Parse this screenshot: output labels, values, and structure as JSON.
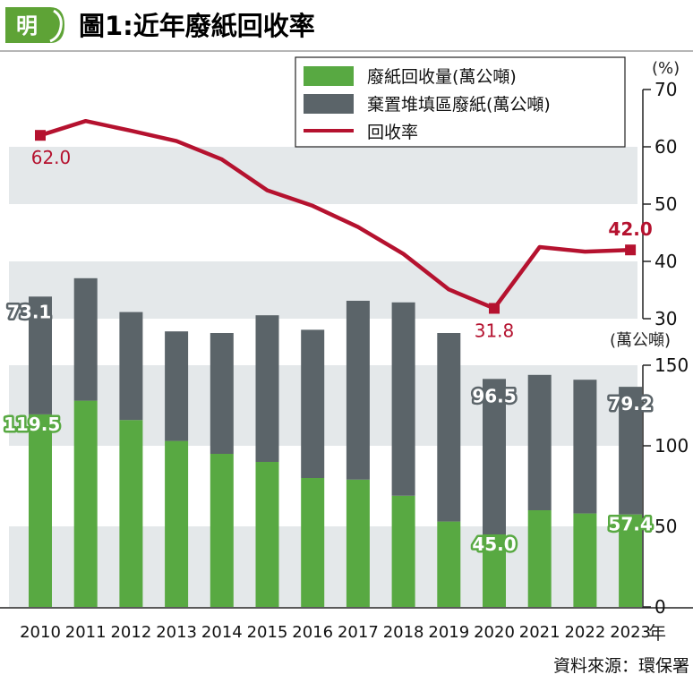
{
  "header": {
    "logo_text": "明",
    "title": "圖1:近年廢紙回收率"
  },
  "source": "資料來源：環保署",
  "colors": {
    "recovered": "#58a942",
    "landfill": "#5b6469",
    "rate_line": "#b5122f",
    "band": "#e4e8ea",
    "logo_green": "#5ea336"
  },
  "chart_data": {
    "type": "bar",
    "stacked": true,
    "categories": [
      "2010",
      "2011",
      "2012",
      "2013",
      "2014",
      "2015",
      "2016",
      "2017",
      "2018",
      "2019",
      "2020",
      "2021",
      "2022",
      "2023"
    ],
    "x_unit_label": "年",
    "series": [
      {
        "name": "廢紙回收量(萬公噸)",
        "axis": "right-lower",
        "values": [
          119.5,
          128,
          116,
          103,
          95,
          90,
          80,
          79,
          69,
          53,
          45,
          60,
          58,
          57.4
        ]
      },
      {
        "name": "棄置堆填區廢紙(萬公噸)",
        "axis": "right-lower",
        "values": [
          73.1,
          76,
          67,
          68,
          75,
          91,
          92,
          111,
          120,
          117,
          96.5,
          84,
          83,
          79.2
        ]
      },
      {
        "name": "回收率",
        "type": "line",
        "axis": "right-upper",
        "values": [
          62.0,
          64.5,
          62.8,
          61.0,
          57.8,
          52.4,
          49.7,
          46.0,
          41.3,
          35.1,
          31.8,
          42.5,
          41.7,
          42.0
        ]
      }
    ],
    "axes": {
      "upper": {
        "label": "(%)",
        "range": [
          30,
          70
        ],
        "ticks": [
          "30",
          "40",
          "50",
          "60",
          "70"
        ]
      },
      "lower": {
        "label": "(萬公噸)",
        "range": [
          0,
          150
        ],
        "ticks": [
          "0",
          "50",
          "100",
          "150"
        ]
      }
    },
    "annotations": {
      "bars": [
        {
          "category": "2010",
          "series": 0,
          "text": "119.5"
        },
        {
          "category": "2010",
          "series": 1,
          "text": "73.1"
        },
        {
          "category": "2020",
          "series": 0,
          "text": "45.0"
        },
        {
          "category": "2020",
          "series": 1,
          "text": "96.5"
        },
        {
          "category": "2023",
          "series": 0,
          "text": "57.4"
        },
        {
          "category": "2023",
          "series": 1,
          "text": "79.2"
        }
      ],
      "line": [
        {
          "category": "2010",
          "text": "62.0",
          "position": "below"
        },
        {
          "category": "2020",
          "text": "31.8",
          "position": "below"
        },
        {
          "category": "2023",
          "text": "42.0",
          "position": "above"
        }
      ]
    },
    "legend_position": "top-right",
    "grid": false
  }
}
